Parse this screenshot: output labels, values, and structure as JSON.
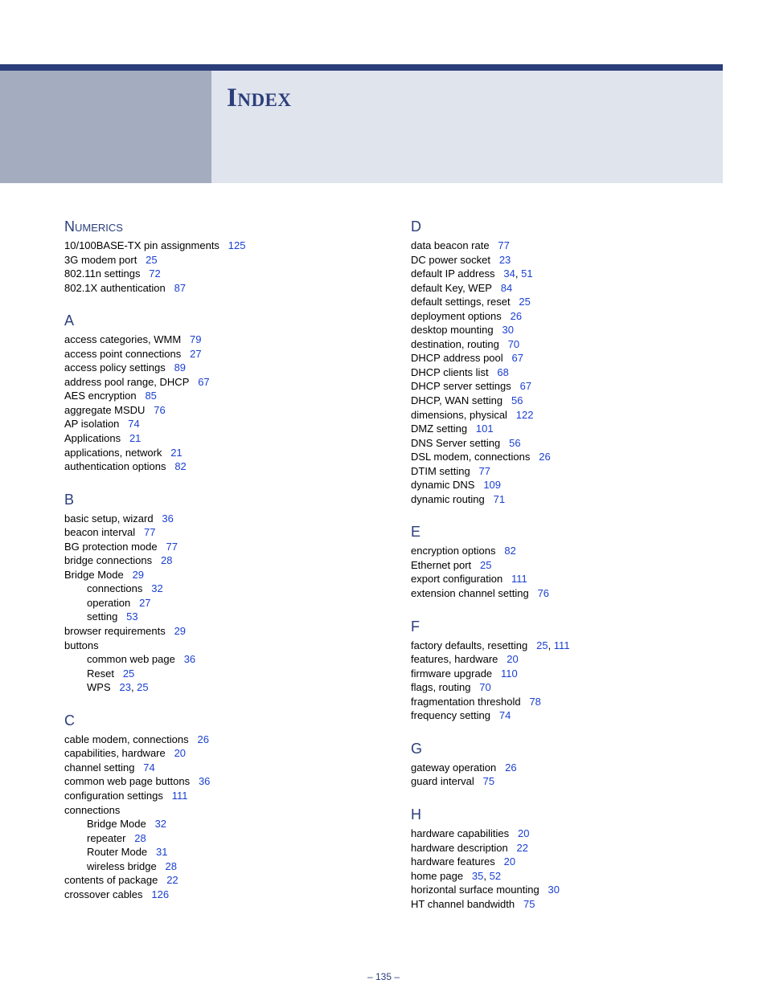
{
  "title": "Index",
  "pageNumber": "–  135  –",
  "colors": {
    "brand": "#2b3e7a",
    "headerBlock": "#a4acbf",
    "headerTitleBg": "#e0e4ed",
    "link": "#1a3fd1",
    "text": "#000000"
  },
  "columns": [
    [
      {
        "heading": "Numerics",
        "smallcaps": true,
        "entries": [
          {
            "text": "10/100BASE-TX pin assignments",
            "pages": [
              "125"
            ]
          },
          {
            "text": "3G modem port",
            "pages": [
              "25"
            ]
          },
          {
            "text": "802.11n settings",
            "pages": [
              "72"
            ]
          },
          {
            "text": "802.1X authentication",
            "pages": [
              "87"
            ]
          }
        ]
      },
      {
        "heading": "A",
        "entries": [
          {
            "text": "access categories, WMM",
            "pages": [
              "79"
            ]
          },
          {
            "text": "access point connections",
            "pages": [
              "27"
            ]
          },
          {
            "text": "access policy settings",
            "pages": [
              "89"
            ]
          },
          {
            "text": "address pool range, DHCP",
            "pages": [
              "67"
            ]
          },
          {
            "text": "AES encryption",
            "pages": [
              "85"
            ]
          },
          {
            "text": "aggregate MSDU",
            "pages": [
              "76"
            ]
          },
          {
            "text": "AP isolation",
            "pages": [
              "74"
            ]
          },
          {
            "text": "Applications",
            "pages": [
              "21"
            ]
          },
          {
            "text": "applications, network",
            "pages": [
              "21"
            ]
          },
          {
            "text": "authentication options",
            "pages": [
              "82"
            ]
          }
        ]
      },
      {
        "heading": "B",
        "entries": [
          {
            "text": "basic setup, wizard",
            "pages": [
              "36"
            ]
          },
          {
            "text": "beacon interval",
            "pages": [
              "77"
            ]
          },
          {
            "text": "BG protection mode",
            "pages": [
              "77"
            ]
          },
          {
            "text": "bridge connections",
            "pages": [
              "28"
            ]
          },
          {
            "text": "Bridge Mode",
            "pages": [
              "29"
            ]
          },
          {
            "text": "connections",
            "pages": [
              "32"
            ],
            "sub": true
          },
          {
            "text": "operation",
            "pages": [
              "27"
            ],
            "sub": true
          },
          {
            "text": "setting",
            "pages": [
              "53"
            ],
            "sub": true
          },
          {
            "text": "browser requirements",
            "pages": [
              "29"
            ]
          },
          {
            "text": "buttons",
            "pages": []
          },
          {
            "text": "common web page",
            "pages": [
              "36"
            ],
            "sub": true
          },
          {
            "text": "Reset",
            "pages": [
              "25"
            ],
            "sub": true
          },
          {
            "text": "WPS",
            "pages": [
              "23",
              "25"
            ],
            "sub": true
          }
        ]
      },
      {
        "heading": "C",
        "entries": [
          {
            "text": "cable modem, connections",
            "pages": [
              "26"
            ]
          },
          {
            "text": "capabilities, hardware",
            "pages": [
              "20"
            ]
          },
          {
            "text": "channel setting",
            "pages": [
              "74"
            ]
          },
          {
            "text": "common web page buttons",
            "pages": [
              "36"
            ]
          },
          {
            "text": "configuration settings",
            "pages": [
              "111"
            ]
          },
          {
            "text": "connections",
            "pages": []
          },
          {
            "text": "Bridge Mode",
            "pages": [
              "32"
            ],
            "sub": true
          },
          {
            "text": "repeater",
            "pages": [
              "28"
            ],
            "sub": true
          },
          {
            "text": "Router Mode",
            "pages": [
              "31"
            ],
            "sub": true
          },
          {
            "text": "wireless bridge",
            "pages": [
              "28"
            ],
            "sub": true
          },
          {
            "text": "contents of package",
            "pages": [
              "22"
            ]
          },
          {
            "text": "crossover cables",
            "pages": [
              "126"
            ]
          }
        ]
      }
    ],
    [
      {
        "heading": "D",
        "entries": [
          {
            "text": "data beacon rate",
            "pages": [
              "77"
            ]
          },
          {
            "text": "DC power socket",
            "pages": [
              "23"
            ]
          },
          {
            "text": "default IP address",
            "pages": [
              "34",
              "51"
            ]
          },
          {
            "text": "default Key, WEP",
            "pages": [
              "84"
            ]
          },
          {
            "text": "default settings, reset",
            "pages": [
              "25"
            ]
          },
          {
            "text": "deployment options",
            "pages": [
              "26"
            ]
          },
          {
            "text": "desktop mounting",
            "pages": [
              "30"
            ]
          },
          {
            "text": "destination, routing",
            "pages": [
              "70"
            ]
          },
          {
            "text": "DHCP address pool",
            "pages": [
              "67"
            ]
          },
          {
            "text": "DHCP clients list",
            "pages": [
              "68"
            ]
          },
          {
            "text": "DHCP server settings",
            "pages": [
              "67"
            ]
          },
          {
            "text": "DHCP, WAN setting",
            "pages": [
              "56"
            ]
          },
          {
            "text": "dimensions, physical",
            "pages": [
              "122"
            ]
          },
          {
            "text": "DMZ setting",
            "pages": [
              "101"
            ]
          },
          {
            "text": "DNS Server setting",
            "pages": [
              "56"
            ]
          },
          {
            "text": "DSL modem, connections",
            "pages": [
              "26"
            ]
          },
          {
            "text": "DTIM setting",
            "pages": [
              "77"
            ]
          },
          {
            "text": "dynamic DNS",
            "pages": [
              "109"
            ]
          },
          {
            "text": "dynamic routing",
            "pages": [
              "71"
            ]
          }
        ]
      },
      {
        "heading": "E",
        "entries": [
          {
            "text": "encryption options",
            "pages": [
              "82"
            ]
          },
          {
            "text": "Ethernet port",
            "pages": [
              "25"
            ]
          },
          {
            "text": "export configuration",
            "pages": [
              "111"
            ]
          },
          {
            "text": "extension channel setting",
            "pages": [
              "76"
            ]
          }
        ]
      },
      {
        "heading": "F",
        "entries": [
          {
            "text": "factory defaults, resetting",
            "pages": [
              "25",
              "111"
            ]
          },
          {
            "text": "features, hardware",
            "pages": [
              "20"
            ]
          },
          {
            "text": "firmware upgrade",
            "pages": [
              "110"
            ]
          },
          {
            "text": "flags, routing",
            "pages": [
              "70"
            ]
          },
          {
            "text": "fragmentation threshold",
            "pages": [
              "78"
            ]
          },
          {
            "text": "frequency setting",
            "pages": [
              "74"
            ]
          }
        ]
      },
      {
        "heading": "G",
        "entries": [
          {
            "text": "gateway operation",
            "pages": [
              "26"
            ]
          },
          {
            "text": "guard interval",
            "pages": [
              "75"
            ]
          }
        ]
      },
      {
        "heading": "H",
        "entries": [
          {
            "text": "hardware capabilities",
            "pages": [
              "20"
            ]
          },
          {
            "text": "hardware description",
            "pages": [
              "22"
            ]
          },
          {
            "text": "hardware features",
            "pages": [
              "20"
            ]
          },
          {
            "text": "home page",
            "pages": [
              "35",
              "52"
            ]
          },
          {
            "text": "horizontal surface mounting",
            "pages": [
              "30"
            ]
          },
          {
            "text": "HT channel bandwidth",
            "pages": [
              "75"
            ]
          }
        ]
      }
    ]
  ]
}
